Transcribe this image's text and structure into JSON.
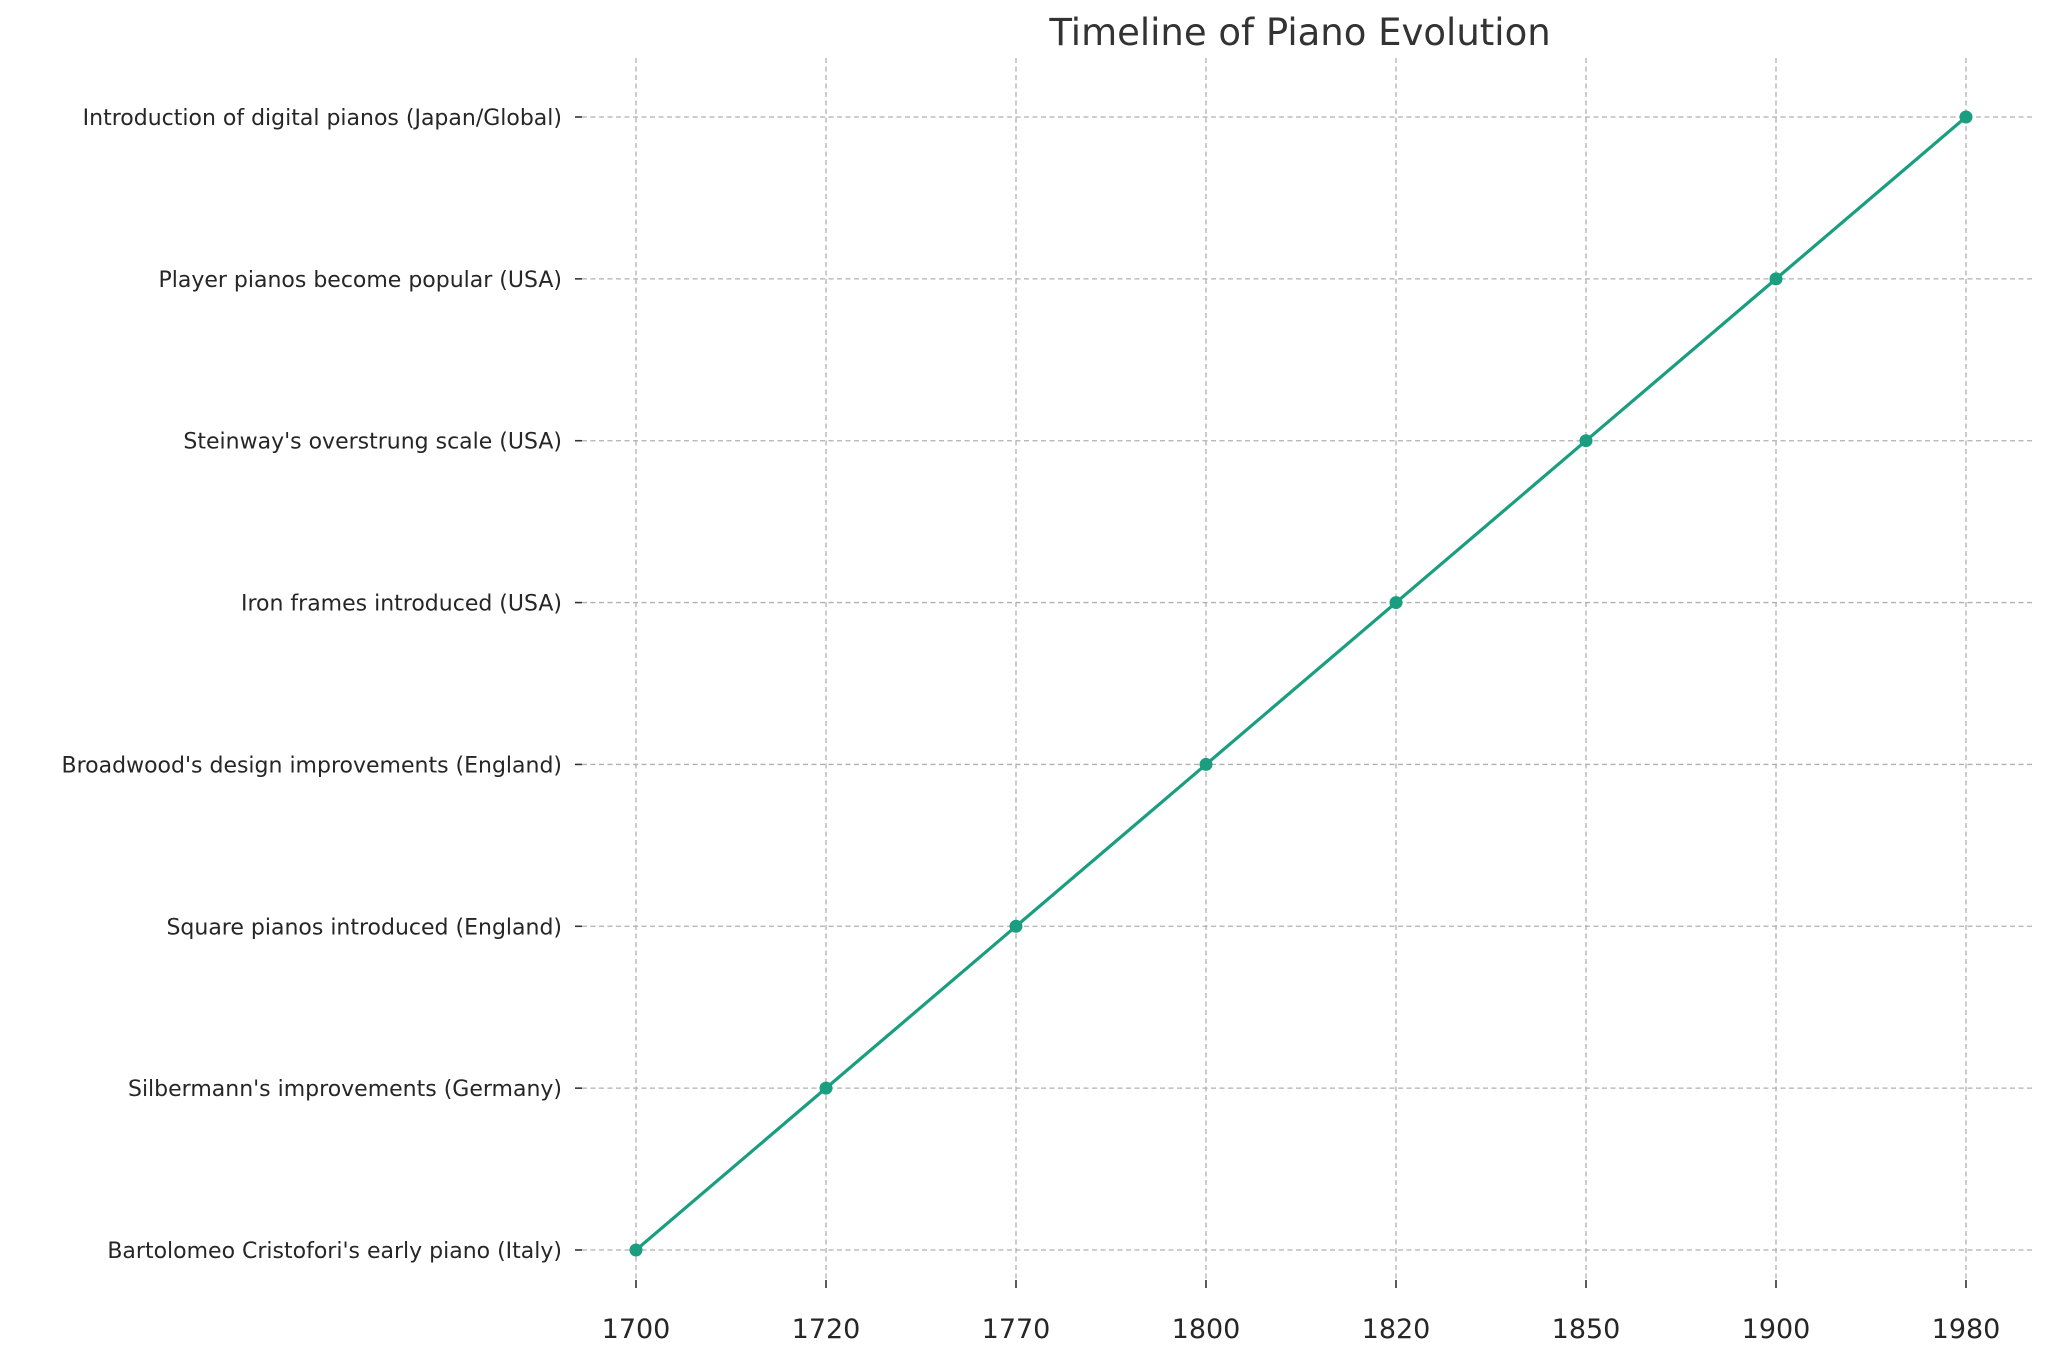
{
  "chart_data": {
    "type": "line",
    "title": "Timeline of Piano Evolution",
    "xlabel": "",
    "ylabel": "",
    "categories": [
      "1700",
      "1720",
      "1770",
      "1800",
      "1820",
      "1850",
      "1900",
      "1980"
    ],
    "events": [
      "Bartolomeo Cristofori's early piano (Italy)",
      "Silbermann's improvements (Germany)",
      "Square pianos introduced (England)",
      "Broadwood's design improvements (England)",
      "Iron frames introduced (USA)",
      "Steinway's overstrung scale (USA)",
      "Player pianos become popular (USA)",
      "Introduction of digital pianos (Japan/Global)"
    ],
    "series": [
      {
        "points": [
          {
            "x": "1700",
            "y": "Bartolomeo Cristofori's early piano (Italy)"
          },
          {
            "x": "1720",
            "y": "Silbermann's improvements (Germany)"
          },
          {
            "x": "1770",
            "y": "Square pianos introduced (England)"
          },
          {
            "x": "1800",
            "y": "Broadwood's design improvements (England)"
          },
          {
            "x": "1820",
            "y": "Iron frames introduced (USA)"
          },
          {
            "x": "1850",
            "y": "Steinway's overstrung scale (USA)"
          },
          {
            "x": "1900",
            "y": "Player pianos become popular (USA)"
          },
          {
            "x": "1980",
            "y": "Introduction of digital pianos (Japan/Global)"
          }
        ],
        "color": "#1a9e7f",
        "marker": "circle"
      }
    ],
    "grid": true,
    "legend": "none"
  }
}
